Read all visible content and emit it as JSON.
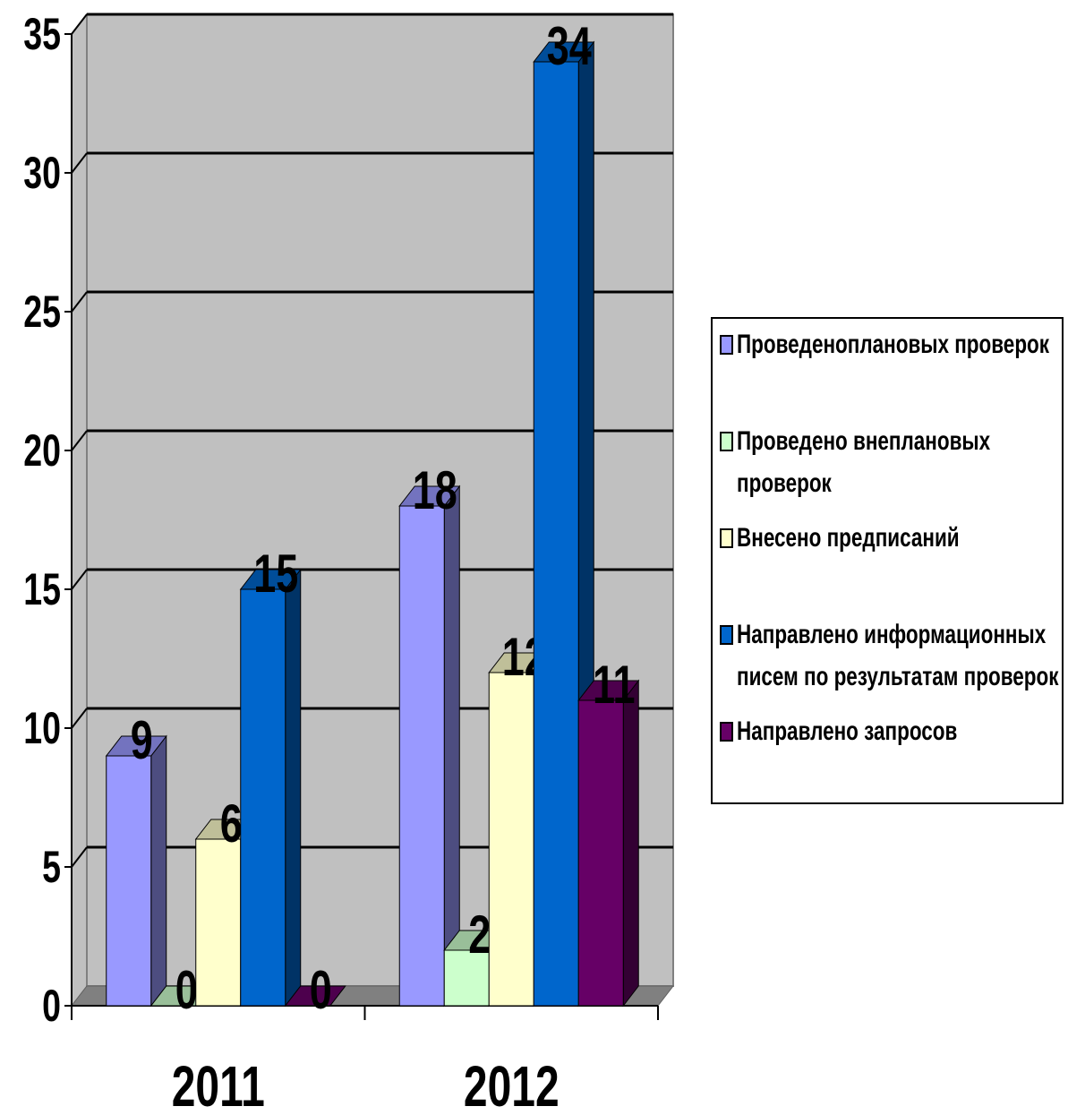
{
  "chart_data": {
    "type": "bar3d",
    "categories": [
      "2011",
      "2012"
    ],
    "series": [
      {
        "name": "Проведеноплановых проверок",
        "color": "#9999ff",
        "values": [
          9,
          18
        ]
      },
      {
        "name": "Проведено внеплановых проверок",
        "color": "#ccffcc",
        "values": [
          0,
          2
        ]
      },
      {
        "name": "Внесено предписаний",
        "color": "#ffffcc",
        "values": [
          6,
          12
        ]
      },
      {
        "name": "Направлено информационных писем по результатам проверок",
        "color": "#0066cc",
        "values": [
          15,
          34
        ]
      },
      {
        "name": "Направлено запросов",
        "color": "#660066",
        "values": [
          0,
          11
        ]
      }
    ],
    "ylim": [
      0,
      35
    ],
    "yticks": [
      0,
      5,
      10,
      15,
      20,
      25,
      30,
      35
    ],
    "grid": true,
    "legend": "right"
  }
}
